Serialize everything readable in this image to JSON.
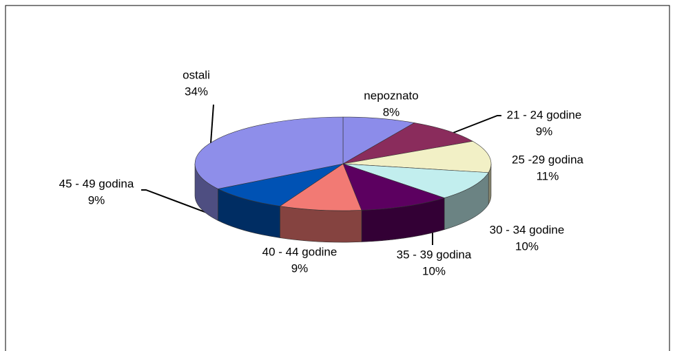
{
  "chart_data": {
    "type": "pie3d",
    "categories": [
      "nepoznato",
      "21 - 24 godine",
      "25 -29 godina",
      "30 - 34 godine",
      "35 - 39 godina",
      "40 - 44 godine",
      "45 - 49 godina",
      "ostali"
    ],
    "values": [
      8,
      9,
      11,
      10,
      10,
      9,
      9,
      34
    ],
    "value_labels": [
      "8%",
      "9%",
      "11%",
      "10%",
      "10%",
      "9%",
      "9%",
      "34%"
    ],
    "colors": [
      "#8c8cea",
      "#8a2c5c",
      "#f2f0c6",
      "#c2eeee",
      "#5c0060",
      "#f27a74",
      "#0052b4",
      "#8e8eea"
    ]
  }
}
